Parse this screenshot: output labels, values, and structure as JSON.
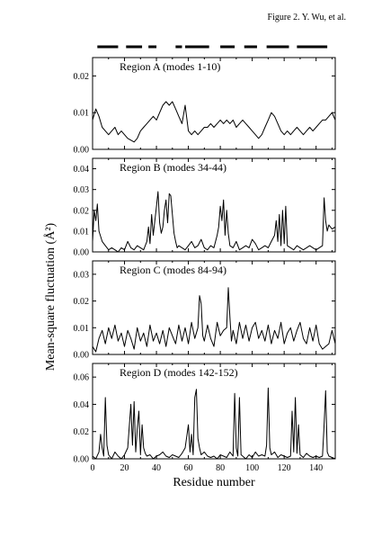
{
  "figure": {
    "caption": "Figure 2. Y. Wu, et al.",
    "xlabel": "Residue number",
    "ylabel": "Mean-square fluctuation (Å²)"
  },
  "segments": [
    [
      3,
      16
    ],
    [
      21,
      31
    ],
    [
      35,
      40
    ],
    [
      52,
      56
    ],
    [
      58,
      73
    ],
    [
      80,
      89
    ],
    [
      95,
      103
    ],
    [
      109,
      123
    ],
    [
      128,
      147
    ]
  ],
  "chart_data": [
    {
      "type": "line",
      "title": "Region A (modes 1-10)",
      "xlim": [
        0,
        152
      ],
      "ylim": [
        0,
        0.025
      ],
      "yticks": [
        "0.00",
        "0.01",
        "0.02"
      ],
      "yticks_values": [
        0,
        0.01,
        0.02
      ],
      "xticks": [
        "0",
        "20",
        "40",
        "60",
        "80",
        "100",
        "120",
        "140"
      ],
      "x": [
        0,
        2,
        4,
        6,
        8,
        10,
        12,
        14,
        16,
        18,
        20,
        22,
        24,
        26,
        28,
        30,
        32,
        34,
        36,
        38,
        40,
        42,
        44,
        46,
        48,
        50,
        52,
        54,
        56,
        58,
        60,
        62,
        64,
        66,
        68,
        70,
        72,
        74,
        76,
        78,
        80,
        82,
        84,
        86,
        88,
        90,
        92,
        94,
        96,
        98,
        100,
        102,
        104,
        106,
        108,
        110,
        112,
        114,
        116,
        118,
        120,
        122,
        124,
        126,
        128,
        130,
        132,
        134,
        136,
        138,
        140,
        142,
        144,
        146,
        148,
        150,
        152
      ],
      "y": [
        0.008,
        0.011,
        0.009,
        0.006,
        0.005,
        0.004,
        0.005,
        0.006,
        0.004,
        0.005,
        0.004,
        0.003,
        0.0025,
        0.002,
        0.003,
        0.005,
        0.006,
        0.007,
        0.008,
        0.009,
        0.008,
        0.01,
        0.012,
        0.013,
        0.012,
        0.013,
        0.011,
        0.009,
        0.007,
        0.012,
        0.005,
        0.004,
        0.005,
        0.004,
        0.005,
        0.006,
        0.006,
        0.007,
        0.006,
        0.007,
        0.008,
        0.007,
        0.008,
        0.007,
        0.008,
        0.006,
        0.007,
        0.008,
        0.007,
        0.006,
        0.005,
        0.004,
        0.003,
        0.004,
        0.006,
        0.008,
        0.01,
        0.009,
        0.007,
        0.005,
        0.004,
        0.005,
        0.004,
        0.005,
        0.006,
        0.005,
        0.004,
        0.005,
        0.006,
        0.005,
        0.006,
        0.007,
        0.008,
        0.008,
        0.009,
        0.01,
        0.008
      ]
    },
    {
      "type": "line",
      "title": "Region B (modes 34-44)",
      "xlim": [
        0,
        152
      ],
      "ylim": [
        0,
        0.045
      ],
      "yticks": [
        "0.00",
        "0.01",
        "0.02",
        "0.03",
        "0.04"
      ],
      "yticks_values": [
        0,
        0.01,
        0.02,
        0.03,
        0.04
      ],
      "xticks": [
        "0",
        "20",
        "40",
        "60",
        "80",
        "100",
        "120",
        "140"
      ],
      "x": [
        0,
        1,
        2,
        3,
        4,
        6,
        8,
        10,
        12,
        14,
        16,
        18,
        20,
        22,
        24,
        26,
        28,
        30,
        32,
        34,
        35,
        36,
        37,
        38,
        39,
        40,
        41,
        42,
        43,
        44,
        45,
        46,
        47,
        48,
        49,
        50,
        51,
        52,
        53,
        54,
        56,
        58,
        60,
        62,
        64,
        66,
        68,
        70,
        72,
        74,
        76,
        78,
        79,
        80,
        81,
        82,
        83,
        84,
        85,
        86,
        88,
        90,
        92,
        94,
        96,
        98,
        100,
        102,
        104,
        106,
        108,
        110,
        112,
        114,
        115,
        116,
        117,
        118,
        119,
        120,
        121,
        122,
        124,
        126,
        128,
        130,
        132,
        134,
        136,
        138,
        140,
        142,
        144,
        145,
        146,
        147,
        148,
        150,
        152
      ],
      "y": [
        0.005,
        0.02,
        0.015,
        0.023,
        0.01,
        0.005,
        0.003,
        0.001,
        0.002,
        0.001,
        0.0,
        0.002,
        0.001,
        0.005,
        0.002,
        0.001,
        0.003,
        0.002,
        0.001,
        0.005,
        0.012,
        0.004,
        0.018,
        0.008,
        0.015,
        0.022,
        0.029,
        0.014,
        0.009,
        0.012,
        0.02,
        0.025,
        0.014,
        0.028,
        0.027,
        0.018,
        0.009,
        0.005,
        0.002,
        0.003,
        0.002,
        0.001,
        0.003,
        0.005,
        0.002,
        0.003,
        0.006,
        0.002,
        0.001,
        0.003,
        0.002,
        0.008,
        0.012,
        0.022,
        0.015,
        0.025,
        0.008,
        0.02,
        0.009,
        0.003,
        0.002,
        0.005,
        0.001,
        0.002,
        0.003,
        0.002,
        0.006,
        0.004,
        0.001,
        0.002,
        0.003,
        0.002,
        0.005,
        0.008,
        0.015,
        0.005,
        0.018,
        0.003,
        0.02,
        0.004,
        0.022,
        0.003,
        0.002,
        0.001,
        0.003,
        0.002,
        0.001,
        0.002,
        0.003,
        0.002,
        0.001,
        0.002,
        0.003,
        0.026,
        0.015,
        0.01,
        0.013,
        0.011,
        0.012
      ]
    },
    {
      "type": "line",
      "title": "Region C (modes 84-94)",
      "xlim": [
        0,
        152
      ],
      "ylim": [
        0,
        0.035
      ],
      "yticks": [
        "0.00",
        "0.01",
        "0.02",
        "0.03"
      ],
      "yticks_values": [
        0,
        0.01,
        0.02,
        0.03
      ],
      "xticks": [
        "0",
        "20",
        "40",
        "60",
        "80",
        "100",
        "120",
        "140"
      ],
      "x": [
        0,
        2,
        4,
        6,
        8,
        10,
        12,
        14,
        16,
        18,
        20,
        22,
        24,
        26,
        28,
        30,
        32,
        34,
        36,
        38,
        40,
        42,
        44,
        46,
        48,
        50,
        52,
        54,
        56,
        58,
        60,
        62,
        64,
        66,
        67,
        68,
        69,
        70,
        72,
        74,
        76,
        78,
        80,
        82,
        84,
        85,
        86,
        87,
        88,
        90,
        92,
        94,
        96,
        98,
        100,
        102,
        104,
        106,
        108,
        110,
        112,
        114,
        116,
        118,
        120,
        122,
        124,
        126,
        128,
        130,
        132,
        134,
        136,
        138,
        140,
        142,
        144,
        146,
        148,
        150,
        152
      ],
      "y": [
        0.003,
        0.001,
        0.006,
        0.009,
        0.004,
        0.01,
        0.006,
        0.011,
        0.005,
        0.008,
        0.003,
        0.009,
        0.006,
        0.002,
        0.01,
        0.005,
        0.008,
        0.003,
        0.011,
        0.005,
        0.008,
        0.004,
        0.009,
        0.003,
        0.01,
        0.007,
        0.004,
        0.011,
        0.005,
        0.01,
        0.004,
        0.012,
        0.006,
        0.01,
        0.022,
        0.019,
        0.007,
        0.005,
        0.011,
        0.006,
        0.003,
        0.012,
        0.007,
        0.009,
        0.01,
        0.025,
        0.014,
        0.005,
        0.009,
        0.004,
        0.012,
        0.006,
        0.011,
        0.005,
        0.01,
        0.012,
        0.006,
        0.009,
        0.005,
        0.011,
        0.004,
        0.009,
        0.006,
        0.012,
        0.004,
        0.008,
        0.01,
        0.005,
        0.009,
        0.012,
        0.006,
        0.004,
        0.01,
        0.005,
        0.011,
        0.004,
        0.002,
        0.003,
        0.004,
        0.009,
        0.004
      ]
    },
    {
      "type": "line",
      "title": "Region D (modes 142-152)",
      "xlim": [
        0,
        152
      ],
      "ylim": [
        0,
        0.07
      ],
      "yticks": [
        "0.00",
        "0.02",
        "0.04",
        "0.06"
      ],
      "yticks_values": [
        0,
        0.02,
        0.04,
        0.06
      ],
      "xticks": [
        "0",
        "20",
        "40",
        "60",
        "80",
        "100",
        "120",
        "140"
      ],
      "x": [
        0,
        2,
        4,
        5,
        6,
        7,
        8,
        9,
        10,
        12,
        14,
        16,
        18,
        20,
        22,
        24,
        25,
        26,
        27,
        28,
        29,
        30,
        31,
        32,
        33,
        34,
        36,
        38,
        40,
        42,
        44,
        46,
        48,
        50,
        52,
        54,
        56,
        58,
        60,
        61,
        62,
        63,
        64,
        65,
        66,
        67,
        68,
        70,
        72,
        74,
        76,
        78,
        80,
        82,
        84,
        86,
        88,
        89,
        90,
        91,
        92,
        93,
        94,
        96,
        98,
        100,
        102,
        104,
        106,
        108,
        109,
        110,
        111,
        112,
        114,
        116,
        118,
        120,
        122,
        124,
        125,
        126,
        127,
        128,
        129,
        130,
        132,
        134,
        136,
        138,
        140,
        142,
        144,
        145,
        146,
        147,
        148,
        150,
        152
      ],
      "y": [
        0.002,
        0.0,
        0.005,
        0.018,
        0.008,
        0.002,
        0.045,
        0.01,
        0.003,
        0.0,
        0.005,
        0.002,
        0.0,
        0.003,
        0.008,
        0.04,
        0.01,
        0.042,
        0.005,
        0.022,
        0.035,
        0.003,
        0.025,
        0.008,
        0.004,
        0.002,
        0.003,
        0.0,
        0.002,
        0.003,
        0.005,
        0.002,
        0.001,
        0.003,
        0.002,
        0.001,
        0.004,
        0.008,
        0.025,
        0.005,
        0.018,
        0.003,
        0.045,
        0.051,
        0.015,
        0.008,
        0.003,
        0.005,
        0.002,
        0.001,
        0.002,
        0.0,
        0.003,
        0.002,
        0.001,
        0.005,
        0.002,
        0.048,
        0.008,
        0.002,
        0.045,
        0.003,
        0.002,
        0.0,
        0.003,
        0.001,
        0.005,
        0.002,
        0.003,
        0.002,
        0.01,
        0.052,
        0.008,
        0.003,
        0.005,
        0.001,
        0.003,
        0.002,
        0.001,
        0.002,
        0.035,
        0.005,
        0.045,
        0.004,
        0.025,
        0.003,
        0.001,
        0.004,
        0.002,
        0.001,
        0.002,
        0.001,
        0.002,
        0.025,
        0.05,
        0.005,
        0.002,
        0.001,
        0.0
      ]
    }
  ]
}
